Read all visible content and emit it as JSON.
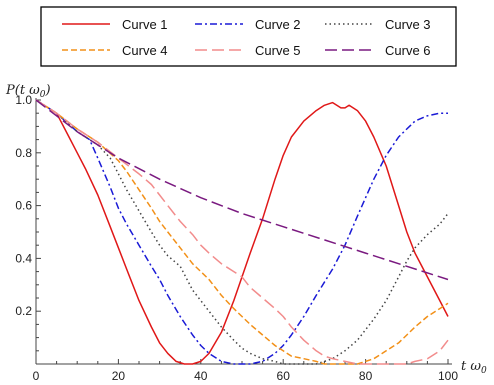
{
  "chart_data": {
    "type": "line",
    "title": "",
    "xlabel": "t ω",
    "xlabel_sub": "0",
    "ylabel": "P(t ω",
    "ylabel_sub": "0",
    "ylabel_close": ")",
    "xlim": [
      0,
      100
    ],
    "ylim": [
      0,
      1.0
    ],
    "x_ticks": [
      0,
      20,
      40,
      60,
      80,
      100
    ],
    "y_ticks": [
      0.2,
      0.4,
      0.6,
      0.8,
      1.0
    ],
    "x_tick_labels": [
      "0",
      "20",
      "40",
      "60",
      "80",
      "100"
    ],
    "y_tick_labels": [
      "0.2",
      "0.4",
      "0.6",
      "0.8",
      "1.0"
    ],
    "grid": false,
    "legend_position": "top",
    "series": [
      {
        "name": "Curve 1",
        "color": "#e01818",
        "dash": "solid",
        "x": [
          0,
          5,
          8,
          10,
          12,
          15,
          18,
          20,
          22,
          25,
          28,
          30,
          32,
          34,
          36,
          37,
          38,
          40,
          42,
          45,
          48,
          50,
          52,
          55,
          58,
          60,
          62,
          65,
          68,
          70,
          72,
          73,
          74,
          75,
          76,
          78,
          80,
          82,
          85,
          88,
          90,
          92,
          95,
          98,
          100
        ],
        "y": [
          1.0,
          0.95,
          0.86,
          0.8,
          0.74,
          0.64,
          0.52,
          0.44,
          0.36,
          0.24,
          0.14,
          0.08,
          0.04,
          0.01,
          0.0,
          0.0,
          0.0,
          0.01,
          0.04,
          0.12,
          0.24,
          0.33,
          0.42,
          0.55,
          0.7,
          0.79,
          0.86,
          0.92,
          0.96,
          0.98,
          0.99,
          0.98,
          0.97,
          0.97,
          0.98,
          0.96,
          0.92,
          0.86,
          0.75,
          0.6,
          0.5,
          0.42,
          0.33,
          0.24,
          0.18
        ]
      },
      {
        "name": "Curve 2",
        "color": "#1a1ad6",
        "dash": "dashdot",
        "x": [
          0,
          5,
          10,
          13,
          15,
          18,
          20,
          22,
          25,
          28,
          30,
          32,
          35,
          38,
          40,
          42,
          45,
          48,
          50,
          52,
          55,
          58,
          60,
          62,
          65,
          68,
          70,
          72,
          75,
          78,
          80,
          82,
          85,
          88,
          90,
          92,
          95,
          98,
          100
        ],
        "y": [
          1.0,
          0.95,
          0.88,
          0.85,
          0.78,
          0.67,
          0.59,
          0.53,
          0.45,
          0.37,
          0.32,
          0.26,
          0.18,
          0.11,
          0.07,
          0.04,
          0.01,
          0.0,
          0.0,
          0.0,
          0.01,
          0.04,
          0.07,
          0.11,
          0.18,
          0.26,
          0.31,
          0.36,
          0.45,
          0.56,
          0.63,
          0.7,
          0.79,
          0.86,
          0.89,
          0.92,
          0.94,
          0.95,
          0.95
        ]
      },
      {
        "name": "Curve 3",
        "color": "#444444",
        "dash": "dotted",
        "x": [
          0,
          5,
          10,
          15,
          18,
          20,
          22,
          25,
          28,
          30,
          32,
          35,
          38,
          40,
          42,
          45,
          48,
          50,
          52,
          55,
          58,
          60,
          62,
          64,
          65,
          66,
          68,
          70,
          72,
          75,
          78,
          80,
          82,
          85,
          88,
          90,
          92,
          95,
          98,
          100
        ],
        "y": [
          1.0,
          0.95,
          0.88,
          0.83,
          0.78,
          0.72,
          0.66,
          0.58,
          0.5,
          0.45,
          0.41,
          0.37,
          0.28,
          0.24,
          0.2,
          0.14,
          0.09,
          0.06,
          0.04,
          0.02,
          0.01,
          0.0,
          0.0,
          0.0,
          0.0,
          0.0,
          0.0,
          0.01,
          0.02,
          0.05,
          0.09,
          0.13,
          0.17,
          0.24,
          0.33,
          0.39,
          0.44,
          0.49,
          0.53,
          0.57
        ]
      },
      {
        "name": "Curve 4",
        "color": "#f29018",
        "dash": "dashed",
        "x": [
          0,
          5,
          10,
          15,
          20,
          22,
          25,
          28,
          30,
          32,
          35,
          38,
          40,
          42,
          45,
          48,
          50,
          52,
          55,
          58,
          60,
          62,
          65,
          68,
          70,
          72,
          75,
          78,
          80,
          82,
          85,
          88,
          90,
          92,
          95,
          98,
          100
        ],
        "y": [
          1.0,
          0.95,
          0.89,
          0.84,
          0.77,
          0.73,
          0.66,
          0.59,
          0.54,
          0.5,
          0.44,
          0.38,
          0.35,
          0.32,
          0.26,
          0.21,
          0.18,
          0.15,
          0.11,
          0.07,
          0.05,
          0.03,
          0.02,
          0.01,
          0.0,
          0.0,
          0.0,
          0.0,
          0.01,
          0.02,
          0.05,
          0.08,
          0.11,
          0.14,
          0.18,
          0.21,
          0.23
        ]
      },
      {
        "name": "Curve 5",
        "color": "#f28c8c",
        "dash": "longdash",
        "x": [
          0,
          5,
          10,
          15,
          20,
          25,
          28,
          30,
          32,
          35,
          38,
          40,
          42,
          45,
          48,
          50,
          52,
          55,
          58,
          60,
          62,
          65,
          68,
          70,
          72,
          75,
          78,
          80,
          82,
          85,
          88,
          90,
          92,
          95,
          98,
          100
        ],
        "y": [
          1.0,
          0.95,
          0.89,
          0.84,
          0.78,
          0.72,
          0.68,
          0.64,
          0.6,
          0.54,
          0.49,
          0.45,
          0.42,
          0.38,
          0.35,
          0.33,
          0.29,
          0.25,
          0.21,
          0.18,
          0.14,
          0.09,
          0.05,
          0.03,
          0.02,
          0.01,
          0.0,
          0.0,
          0.0,
          0.0,
          0.0,
          0.0,
          0.01,
          0.02,
          0.05,
          0.09
        ]
      },
      {
        "name": "Curve 6",
        "color": "#7a1a80",
        "dash": "longdash",
        "x": [
          0,
          10,
          20,
          30,
          40,
          50,
          60,
          70,
          80,
          90,
          100
        ],
        "y": [
          1.0,
          0.88,
          0.78,
          0.7,
          0.63,
          0.57,
          0.52,
          0.47,
          0.42,
          0.37,
          0.32
        ]
      }
    ]
  }
}
